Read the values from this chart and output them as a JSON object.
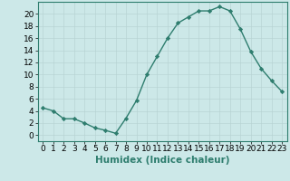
{
  "x": [
    0,
    1,
    2,
    3,
    4,
    5,
    6,
    7,
    8,
    9,
    10,
    11,
    12,
    13,
    14,
    15,
    16,
    17,
    18,
    19,
    20,
    21,
    22,
    23
  ],
  "y": [
    4.5,
    4.0,
    2.7,
    2.7,
    2.0,
    1.2,
    0.8,
    0.3,
    2.8,
    5.7,
    10.0,
    13.0,
    16.0,
    18.5,
    19.5,
    20.5,
    20.5,
    21.2,
    20.5,
    17.5,
    13.8,
    11.0,
    9.0,
    7.2
  ],
  "line_color": "#2e7d6e",
  "marker": "D",
  "marker_size": 2.2,
  "line_width": 1.0,
  "bg_color": "#cce8e8",
  "grid_color": "#b8d4d4",
  "xlabel": "Humidex (Indice chaleur)",
  "xlim": [
    -0.5,
    23.5
  ],
  "ylim": [
    -1.0,
    22.0
  ],
  "yticks": [
    0,
    2,
    4,
    6,
    8,
    10,
    12,
    14,
    16,
    18,
    20
  ],
  "xticks": [
    0,
    1,
    2,
    3,
    4,
    5,
    6,
    7,
    8,
    9,
    10,
    11,
    12,
    13,
    14,
    15,
    16,
    17,
    18,
    19,
    20,
    21,
    22,
    23
  ],
  "xlabel_fontsize": 7.5,
  "tick_fontsize": 6.5
}
